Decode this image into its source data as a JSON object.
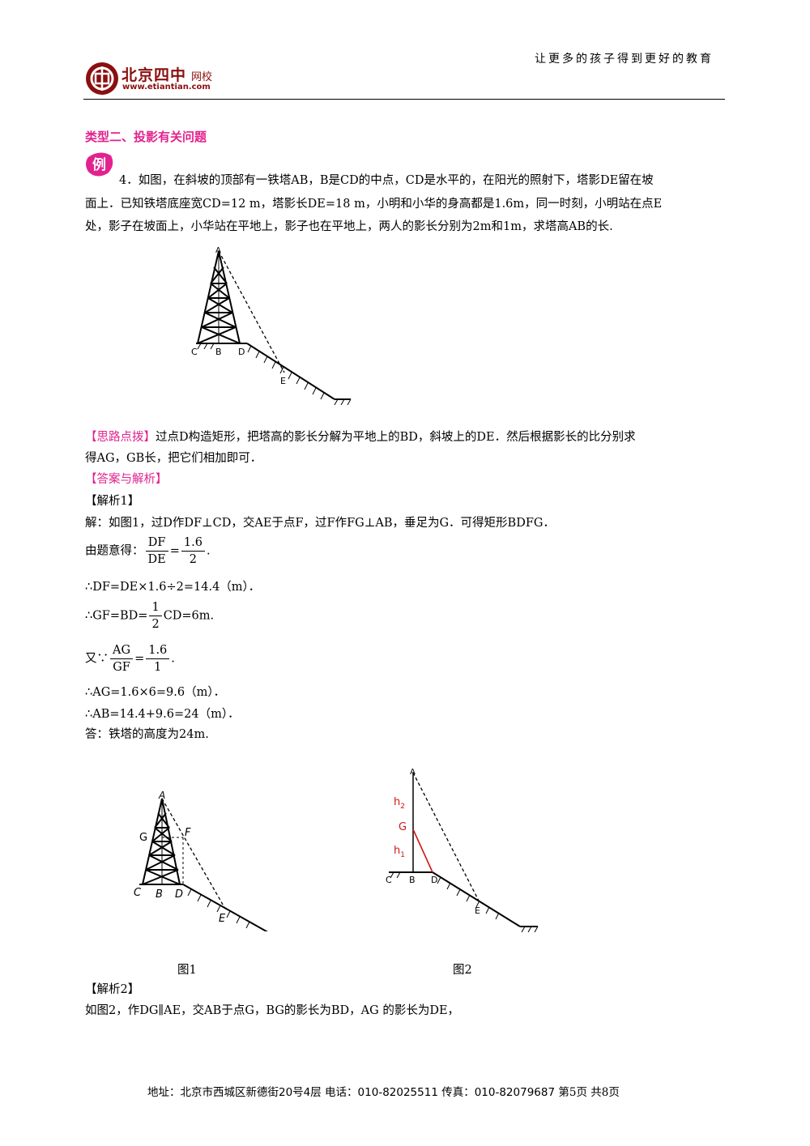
{
  "header": {
    "slogan": "让更多的孩子得到更好的教育",
    "logo_name": "北京四中",
    "logo_net": "网校",
    "logo_url": "www.etiantian.com"
  },
  "section": {
    "title": "类型二、投影有关问题",
    "example_badge": "例"
  },
  "problem": {
    "line1": "4．如图，在斜坡的顶部有一铁塔AB，B是CD的中点，CD是水平的，在阳光的照射下，塔影DE留在坡",
    "line2": "面上．已知铁塔底座宽CD=12 m，塔影长DE=18 m，小明和小华的身高都是1.6m，同一时刻，小明站在点E",
    "line3": "处，影子在坡面上，小华站在平地上，影子也在平地上，两人的影长分别为2m和1m，求塔高AB的长."
  },
  "figure_main_labels": {
    "A": "A",
    "C": "C",
    "B": "B",
    "D": "D",
    "E": "E"
  },
  "hint": {
    "tag": "【思路点拨】",
    "line1": "过点D构造矩形，把塔高的影长分解为平地上的BD，斜坡上的DE．然后根据影长的比分别求",
    "line2": "得AG，GB长，把它们相加即可．"
  },
  "answer_tag": "【答案与解析】",
  "solution1": {
    "tag": "【解析1】",
    "line1": "解：如图1，过D作DF⊥CD，交AE于点F，过F作FG⊥AB，垂足为G．可得矩形BDFG．",
    "line2_prefix": "由题意得：",
    "frac1_num": "DF",
    "frac1_den": "DE",
    "eq": "=",
    "frac2_num": "1.6",
    "frac2_den": "2",
    "end": ".",
    "line3": "∴DF=DE×1.6÷2=14.4（m）．",
    "line4_prefix": "∴GF=BD=",
    "half_num": "1",
    "half_den": "2",
    "line4_suffix": "CD=6m.",
    "line5_prefix": "又∵",
    "frac3_num": "AG",
    "frac3_den": "GF",
    "frac4_num": "1.6",
    "frac4_den": "1",
    "line6": "∴AG=1.6×6=9.6（m）．",
    "line7": "∴AB=14.4+9.6=24（m）．",
    "line8": "答：铁塔的高度为24m."
  },
  "figure1": {
    "labels": {
      "A": "A",
      "G": "G",
      "F": "F",
      "C": "C",
      "B": "B",
      "D": "D",
      "E": "E"
    },
    "caption": "图1"
  },
  "figure2": {
    "labels": {
      "A": "A",
      "h2": "h",
      "h2_sub": "2",
      "G": "G",
      "h1": "h",
      "h1_sub": "1",
      "C": "C",
      "B": "B",
      "D": "D",
      "E": "E"
    },
    "caption": "图2"
  },
  "solution2": {
    "tag": "【解析2】",
    "line1": "如图2，作DG∥AE，交AB于点G，BG的影长为BD，AG 的影长为DE，"
  },
  "footer": {
    "text": "地址：北京市西城区新德街20号4层 电话：010-82025511 传真：010-82079687",
    "page": "第5页 共8页"
  },
  "colors": {
    "accent": "#e2228e",
    "brand": "#8b0f0f",
    "red_line": "#d01818"
  }
}
